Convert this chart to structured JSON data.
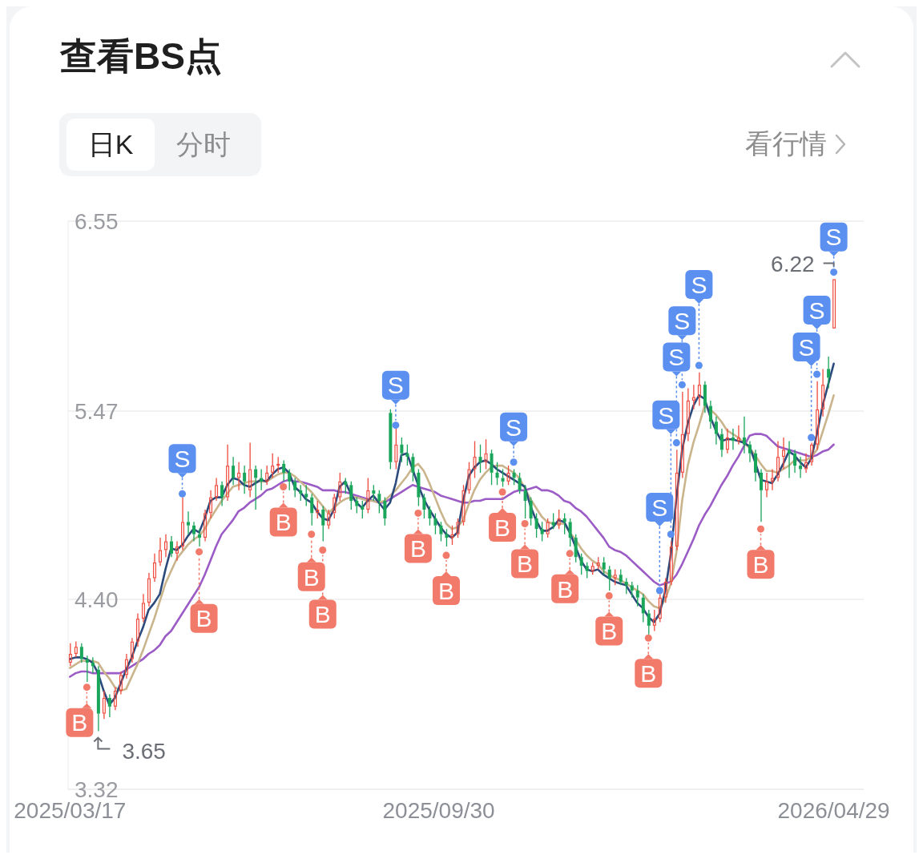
{
  "chart_data": {
    "type": "candlestick",
    "title": "查看BS点",
    "x": [
      "2025-03-17",
      "2025-03-20",
      "2025-03-23",
      "2025-03-26",
      "2025-03-29",
      "2025-04-01",
      "2025-04-04",
      "2025-04-07",
      "2025-04-10",
      "2025-04-13",
      "2025-04-16",
      "2025-04-19",
      "2025-04-22",
      "2025-04-25",
      "2025-04-28",
      "2025-05-01",
      "2025-05-04",
      "2025-05-07",
      "2025-05-10",
      "2025-05-13",
      "2025-05-16",
      "2025-05-19",
      "2025-05-22",
      "2025-05-25",
      "2025-05-28",
      "2025-05-31",
      "2025-06-03",
      "2025-06-06",
      "2025-06-09",
      "2025-06-12",
      "2025-06-15",
      "2025-06-18",
      "2025-06-21",
      "2025-06-24",
      "2025-06-27",
      "2025-06-30",
      "2025-07-03",
      "2025-07-06",
      "2025-07-09",
      "2025-07-12",
      "2025-07-15",
      "2025-07-18",
      "2025-07-21",
      "2025-07-24",
      "2025-07-27",
      "2025-07-30",
      "2025-08-02",
      "2025-08-05",
      "2025-08-08",
      "2025-08-11",
      "2025-08-14",
      "2025-08-17",
      "2025-08-20",
      "2025-08-23",
      "2025-08-26",
      "2025-08-29",
      "2025-09-01",
      "2025-09-04",
      "2025-09-07",
      "2025-09-10",
      "2025-09-13",
      "2025-09-16",
      "2025-09-19",
      "2025-09-22",
      "2025-09-25",
      "2025-09-28",
      "2025-10-01",
      "2025-10-04",
      "2025-10-07",
      "2025-10-10",
      "2025-10-13",
      "2025-10-16",
      "2025-10-19",
      "2025-10-22",
      "2025-10-25",
      "2025-10-28",
      "2025-10-31",
      "2025-11-03",
      "2025-11-06",
      "2025-11-09",
      "2025-11-12",
      "2025-11-15",
      "2025-11-18",
      "2025-11-21",
      "2025-11-24",
      "2025-11-27",
      "2025-11-30",
      "2025-12-03",
      "2025-12-06",
      "2025-12-09",
      "2025-12-12",
      "2025-12-15",
      "2025-12-18",
      "2025-12-21",
      "2025-12-24",
      "2025-12-27",
      "2025-12-30",
      "2026-01-02",
      "2026-01-05",
      "2026-01-08",
      "2026-01-11",
      "2026-01-14",
      "2026-01-17",
      "2026-01-20",
      "2026-01-23",
      "2026-01-26",
      "2026-01-29",
      "2026-02-01",
      "2026-02-04",
      "2026-02-07",
      "2026-02-10",
      "2026-02-13",
      "2026-02-16",
      "2026-02-19",
      "2026-02-22",
      "2026-02-25",
      "2026-02-28",
      "2026-03-03",
      "2026-03-06",
      "2026-03-09",
      "2026-03-12",
      "2026-03-15",
      "2026-03-18",
      "2026-03-21",
      "2026-03-24",
      "2026-03-27",
      "2026-03-30",
      "2026-04-02",
      "2026-04-05",
      "2026-04-08",
      "2026-04-11",
      "2026-04-14",
      "2026-04-17",
      "2026-04-20",
      "2026-04-23",
      "2026-04-26",
      "2026-04-29"
    ],
    "ohlc": [
      [
        4.04,
        4.15,
        4.02,
        4.09
      ],
      [
        4.09,
        4.16,
        4.07,
        4.13
      ],
      [
        4.13,
        4.15,
        4.04,
        4.06
      ],
      [
        4.06,
        4.08,
        3.93,
        4.04
      ],
      [
        4.04,
        4.07,
        3.98,
        4.02
      ],
      [
        4.0,
        4.02,
        3.65,
        3.75
      ],
      [
        3.75,
        3.88,
        3.72,
        3.84
      ],
      [
        3.84,
        3.86,
        3.73,
        3.79
      ],
      [
        3.79,
        3.9,
        3.77,
        3.88
      ],
      [
        3.88,
        3.99,
        3.86,
        3.97
      ],
      [
        3.97,
        4.09,
        3.95,
        4.06
      ],
      [
        4.06,
        4.18,
        4.04,
        4.16
      ],
      [
        4.16,
        4.32,
        4.13,
        4.29
      ],
      [
        4.29,
        4.43,
        4.27,
        4.38
      ],
      [
        4.38,
        4.55,
        4.36,
        4.52
      ],
      [
        4.52,
        4.66,
        4.5,
        4.61
      ],
      [
        4.61,
        4.75,
        4.59,
        4.68
      ],
      [
        4.68,
        4.77,
        4.64,
        4.73
      ],
      [
        4.73,
        4.76,
        4.64,
        4.66
      ],
      [
        4.66,
        4.73,
        4.62,
        4.7
      ],
      [
        4.7,
        4.98,
        4.68,
        4.84
      ],
      [
        4.84,
        4.9,
        4.77,
        4.82
      ],
      [
        4.82,
        4.84,
        4.73,
        4.77
      ],
      [
        4.77,
        4.8,
        4.7,
        4.75
      ],
      [
        4.75,
        4.91,
        4.73,
        4.89
      ],
      [
        4.89,
        5.02,
        4.86,
        4.98
      ],
      [
        4.98,
        5.09,
        4.96,
        5.05
      ],
      [
        5.05,
        5.07,
        4.93,
        4.98
      ],
      [
        4.98,
        5.28,
        4.96,
        5.16
      ],
      [
        5.16,
        5.21,
        5.05,
        5.09
      ],
      [
        5.09,
        5.18,
        5.02,
        5.12
      ],
      [
        5.12,
        5.16,
        5.0,
        5.07
      ],
      [
        5.02,
        5.29,
        4.98,
        5.14
      ],
      [
        5.14,
        5.16,
        4.91,
        5.09
      ],
      [
        5.09,
        5.14,
        5.02,
        5.07
      ],
      [
        5.07,
        5.16,
        5.05,
        5.12
      ],
      [
        5.12,
        5.23,
        5.09,
        5.16
      ],
      [
        5.16,
        5.21,
        5.12,
        5.17
      ],
      [
        5.17,
        5.19,
        5.07,
        5.12
      ],
      [
        5.12,
        5.14,
        5.02,
        5.07
      ],
      [
        5.07,
        5.09,
        4.98,
        5.02
      ],
      [
        5.02,
        5.05,
        4.96,
        5.0
      ],
      [
        5.0,
        5.05,
        4.93,
        4.98
      ],
      [
        4.98,
        5.0,
        4.82,
        4.89
      ],
      [
        4.89,
        4.96,
        4.86,
        4.91
      ],
      [
        4.91,
        4.93,
        4.73,
        4.82
      ],
      [
        4.82,
        4.91,
        4.8,
        4.89
      ],
      [
        4.89,
        5.0,
        4.86,
        4.98
      ],
      [
        4.98,
        5.12,
        4.96,
        5.07
      ],
      [
        5.07,
        5.09,
        5.0,
        5.05
      ],
      [
        5.05,
        5.07,
        4.91,
        4.96
      ],
      [
        4.96,
        4.98,
        4.89,
        4.93
      ],
      [
        4.93,
        4.96,
        4.86,
        4.91
      ],
      [
        4.91,
        5.09,
        4.89,
        5.02
      ],
      [
        5.02,
        5.05,
        4.96,
        5.0
      ],
      [
        5.0,
        5.02,
        4.89,
        4.96
      ],
      [
        4.96,
        4.98,
        4.82,
        4.86
      ],
      [
        5.46,
        5.48,
        5.14,
        5.18
      ],
      [
        5.18,
        5.37,
        5.14,
        5.28
      ],
      [
        5.28,
        5.32,
        5.18,
        5.23
      ],
      [
        5.23,
        5.28,
        5.16,
        5.21
      ],
      [
        5.21,
        5.23,
        5.07,
        5.12
      ],
      [
        5.12,
        5.14,
        4.93,
        4.98
      ],
      [
        4.98,
        5.0,
        4.86,
        4.91
      ],
      [
        4.91,
        4.93,
        4.82,
        4.86
      ],
      [
        4.86,
        4.89,
        4.77,
        4.82
      ],
      [
        4.82,
        4.84,
        4.73,
        4.77
      ],
      [
        4.77,
        4.8,
        4.7,
        4.75
      ],
      [
        4.75,
        4.82,
        4.71,
        4.77
      ],
      [
        4.77,
        4.86,
        4.75,
        4.84
      ],
      [
        4.84,
        5.05,
        4.82,
        5.02
      ],
      [
        5.02,
        5.18,
        5.0,
        5.14
      ],
      [
        5.14,
        5.3,
        5.09,
        5.21
      ],
      [
        5.21,
        5.28,
        5.12,
        5.18
      ],
      [
        5.18,
        5.31,
        5.14,
        5.23
      ],
      [
        5.23,
        5.25,
        5.05,
        5.12
      ],
      [
        5.12,
        5.18,
        5.05,
        5.09
      ],
      [
        5.09,
        5.14,
        5.04,
        5.07
      ],
      [
        5.07,
        5.16,
        5.05,
        5.12
      ],
      [
        5.12,
        5.14,
        5.05,
        5.09
      ],
      [
        5.09,
        5.12,
        5.0,
        5.02
      ],
      [
        5.02,
        5.05,
        4.86,
        4.96
      ],
      [
        4.96,
        4.98,
        4.82,
        4.86
      ],
      [
        4.86,
        4.89,
        4.75,
        4.8
      ],
      [
        4.8,
        4.84,
        4.73,
        4.77
      ],
      [
        4.77,
        4.86,
        4.75,
        4.84
      ],
      [
        4.84,
        4.89,
        4.8,
        4.82
      ],
      [
        4.82,
        4.91,
        4.8,
        4.86
      ],
      [
        4.86,
        4.89,
        4.77,
        4.84
      ],
      [
        4.84,
        4.86,
        4.7,
        4.75
      ],
      [
        4.75,
        4.77,
        4.61,
        4.64
      ],
      [
        4.64,
        4.66,
        4.54,
        4.59
      ],
      [
        4.59,
        4.61,
        4.52,
        4.56
      ],
      [
        4.56,
        4.61,
        4.54,
        4.59
      ],
      [
        4.59,
        4.64,
        4.57,
        4.61
      ],
      [
        4.61,
        4.64,
        4.54,
        4.57
      ],
      [
        4.57,
        4.59,
        4.45,
        4.52
      ],
      [
        4.52,
        4.57,
        4.48,
        4.54
      ],
      [
        4.54,
        4.57,
        4.48,
        4.5
      ],
      [
        4.5,
        4.52,
        4.43,
        4.48
      ],
      [
        4.48,
        4.5,
        4.41,
        4.45
      ],
      [
        4.45,
        4.48,
        4.36,
        4.41
      ],
      [
        4.41,
        4.43,
        4.27,
        4.32
      ],
      [
        4.32,
        4.34,
        4.2,
        4.25
      ],
      [
        4.25,
        4.34,
        4.22,
        4.29
      ],
      [
        4.29,
        4.43,
        4.27,
        4.41
      ],
      [
        4.41,
        4.52,
        4.38,
        4.5
      ],
      [
        4.5,
        4.73,
        4.48,
        4.7
      ],
      [
        4.7,
        5.25,
        4.68,
        5.12
      ],
      [
        5.12,
        5.58,
        5.09,
        5.34
      ],
      [
        5.34,
        5.6,
        5.3,
        5.53
      ],
      [
        5.53,
        5.62,
        5.48,
        5.55
      ],
      [
        5.55,
        5.69,
        5.5,
        5.62
      ],
      [
        5.62,
        5.64,
        5.46,
        5.5
      ],
      [
        5.5,
        5.53,
        5.37,
        5.41
      ],
      [
        5.41,
        5.44,
        5.28,
        5.34
      ],
      [
        5.34,
        5.37,
        5.21,
        5.25
      ],
      [
        5.25,
        5.37,
        5.23,
        5.32
      ],
      [
        5.32,
        5.37,
        5.25,
        5.3
      ],
      [
        5.3,
        5.39,
        5.28,
        5.32
      ],
      [
        5.32,
        5.44,
        5.23,
        5.28
      ],
      [
        5.28,
        5.3,
        5.18,
        5.23
      ],
      [
        5.23,
        5.25,
        5.07,
        5.12
      ],
      [
        5.12,
        5.14,
        4.84,
        5.02
      ],
      [
        5.02,
        5.12,
        4.98,
        5.07
      ],
      [
        5.07,
        5.14,
        5.02,
        5.09
      ],
      [
        5.09,
        5.3,
        5.07,
        5.21
      ],
      [
        5.21,
        5.32,
        5.14,
        5.25
      ],
      [
        5.25,
        5.3,
        5.09,
        5.23
      ],
      [
        5.23,
        5.25,
        5.12,
        5.16
      ],
      [
        5.16,
        5.21,
        5.09,
        5.14
      ],
      [
        5.14,
        5.23,
        5.12,
        5.18
      ],
      [
        5.18,
        5.29,
        5.16,
        5.28
      ],
      [
        5.28,
        5.64,
        5.25,
        5.48
      ],
      [
        5.48,
        5.71,
        5.44,
        5.62
      ],
      [
        5.71,
        5.78,
        5.6,
        5.66
      ],
      [
        5.94,
        6.22,
        5.94,
        6.22
      ]
    ],
    "colors": [
      "#ef4a3d",
      "#ef4a3d",
      "#19a55a",
      "#19a55a",
      "#19a55a",
      "#19a55a",
      "#ef4a3d",
      "#19a55a",
      "#ef4a3d",
      "#ef4a3d",
      "#ef4a3d",
      "#ef4a3d",
      "#ef4a3d",
      "#ef4a3d",
      "#ef4a3d",
      "#ef4a3d",
      "#ef4a3d",
      "#ef4a3d",
      "#19a55a",
      "#ef4a3d",
      "#ef4a3d",
      "#19a55a",
      "#19a55a",
      "#19a55a",
      "#ef4a3d",
      "#ef4a3d",
      "#ef4a3d",
      "#19a55a",
      "#ef4a3d",
      "#19a55a",
      "#ef4a3d",
      "#19a55a",
      "#ef4a3d",
      "#19a55a",
      "#19a55a",
      "#ef4a3d",
      "#ef4a3d",
      "#ef4a3d",
      "#19a55a",
      "#19a55a",
      "#19a55a",
      "#19a55a",
      "#19a55a",
      "#19a55a",
      "#ef4a3d",
      "#19a55a",
      "#ef4a3d",
      "#ef4a3d",
      "#ef4a3d",
      "#19a55a",
      "#19a55a",
      "#19a55a",
      "#19a55a",
      "#ef4a3d",
      "#19a55a",
      "#19a55a",
      "#19a55a",
      "#19a55a",
      "#ef4a3d",
      "#19a55a",
      "#19a55a",
      "#19a55a",
      "#19a55a",
      "#19a55a",
      "#19a55a",
      "#19a55a",
      "#19a55a",
      "#19a55a",
      "#ef4a3d",
      "#ef4a3d",
      "#ef4a3d",
      "#ef4a3d",
      "#ef4a3d",
      "#19a55a",
      "#ef4a3d",
      "#19a55a",
      "#19a55a",
      "#19a55a",
      "#ef4a3d",
      "#19a55a",
      "#19a55a",
      "#19a55a",
      "#19a55a",
      "#19a55a",
      "#19a55a",
      "#ef4a3d",
      "#19a55a",
      "#ef4a3d",
      "#19a55a",
      "#19a55a",
      "#19a55a",
      "#19a55a",
      "#19a55a",
      "#ef4a3d",
      "#ef4a3d",
      "#19a55a",
      "#19a55a",
      "#ef4a3d",
      "#19a55a",
      "#19a55a",
      "#19a55a",
      "#19a55a",
      "#19a55a",
      "#19a55a",
      "#ef4a3d",
      "#ef4a3d",
      "#ef4a3d",
      "#ef4a3d",
      "#ef4a3d",
      "#ef4a3d",
      "#ef4a3d",
      "#ef4a3d",
      "#ef4a3d",
      "#19a55a",
      "#19a55a",
      "#19a55a",
      "#19a55a",
      "#ef4a3d",
      "#19a55a",
      "#ef4a3d",
      "#19a55a",
      "#19a55a",
      "#19a55a",
      "#19a55a",
      "#ef4a3d",
      "#ef4a3d",
      "#ef4a3d",
      "#ef4a3d",
      "#19a55a",
      "#19a55a",
      "#19a55a",
      "#ef4a3d",
      "#ef4a3d",
      "#ef4a3d",
      "#ef4a3d",
      "#19a55a",
      "#ef4a3d"
    ],
    "series": [
      {
        "type": "line",
        "color": "#2c4a7c",
        "values": [
          4.06,
          4.07,
          4.07,
          4.06,
          4.04,
          3.98,
          3.88,
          3.8,
          3.84,
          3.92,
          4.0,
          4.07,
          4.16,
          4.24,
          4.34,
          4.38,
          4.43,
          4.57,
          4.69,
          4.68,
          4.71,
          4.76,
          4.8,
          4.78,
          4.86,
          4.96,
          4.98,
          4.98,
          5.05,
          5.09,
          5.08,
          5.05,
          5.04,
          5.06,
          5.08,
          5.07,
          5.11,
          5.14,
          5.15,
          5.12,
          5.04,
          5.01,
          4.97,
          4.95,
          4.9,
          4.86,
          4.85,
          4.91,
          5.04,
          5.07,
          5.0,
          4.95,
          4.92,
          4.96,
          4.99,
          4.95,
          4.91,
          4.95,
          5.06,
          5.22,
          5.23,
          5.14,
          5.05,
          4.97,
          4.91,
          4.86,
          4.81,
          4.77,
          4.75,
          4.78,
          4.96,
          5.1,
          5.15,
          5.18,
          5.19,
          5.17,
          5.14,
          5.12,
          5.1,
          5.08,
          5.06,
          5.04,
          4.93,
          4.85,
          4.79,
          4.79,
          4.81,
          4.85,
          4.84,
          4.78,
          4.7,
          4.62,
          4.57,
          4.56,
          4.57,
          4.54,
          4.52,
          4.5,
          4.49,
          4.48,
          4.43,
          4.38,
          4.35,
          4.3,
          4.27,
          4.32,
          4.45,
          4.66,
          4.98,
          5.25,
          5.4,
          5.5,
          5.56,
          5.54,
          5.44,
          5.36,
          5.3,
          5.31,
          5.31,
          5.3,
          5.29,
          5.27,
          5.18,
          5.08,
          5.07,
          5.06,
          5.11,
          5.17,
          5.24,
          5.22,
          5.18,
          5.15,
          5.2,
          5.34,
          5.5,
          5.62,
          5.74
        ]
      },
      {
        "type": "line",
        "color": "#c9b48c",
        "values": [
          4.01,
          4.03,
          4.05,
          4.05,
          4.05,
          4.04,
          3.99,
          3.95,
          3.9,
          3.88,
          3.89,
          3.96,
          4.03,
          4.11,
          4.2,
          4.29,
          4.39,
          4.49,
          4.56,
          4.63,
          4.67,
          4.71,
          4.74,
          4.76,
          4.8,
          4.86,
          4.91,
          4.96,
          5.0,
          5.04,
          5.05,
          5.06,
          5.07,
          5.07,
          5.07,
          5.07,
          5.09,
          5.11,
          5.12,
          5.12,
          5.1,
          5.07,
          5.04,
          5.01,
          4.97,
          4.93,
          4.89,
          4.92,
          4.95,
          4.97,
          4.98,
          4.98,
          4.97,
          4.96,
          4.96,
          4.95,
          4.96,
          4.99,
          5.02,
          5.06,
          5.1,
          5.15,
          5.17,
          5.13,
          5.06,
          4.98,
          4.9,
          4.83,
          4.8,
          4.81,
          4.85,
          4.94,
          5.02,
          5.08,
          5.12,
          5.15,
          5.16,
          5.16,
          5.14,
          5.12,
          5.09,
          5.03,
          4.97,
          4.92,
          4.87,
          4.84,
          4.83,
          4.83,
          4.83,
          4.78,
          4.74,
          4.69,
          4.65,
          4.62,
          4.6,
          4.56,
          4.54,
          4.52,
          4.51,
          4.49,
          4.47,
          4.45,
          4.43,
          4.39,
          4.36,
          4.35,
          4.4,
          4.49,
          4.67,
          4.96,
          5.16,
          5.29,
          5.39,
          5.5,
          5.48,
          5.45,
          5.41,
          5.36,
          5.34,
          5.32,
          5.29,
          5.26,
          5.22,
          5.17,
          5.13,
          5.13,
          5.12,
          5.14,
          5.16,
          5.19,
          5.19,
          5.19,
          5.21,
          5.25,
          5.35,
          5.45,
          5.56
        ]
      },
      {
        "type": "line",
        "color": "#9c5cc6",
        "values": [
          3.96,
          3.98,
          3.99,
          3.99,
          3.98,
          3.98,
          3.98,
          3.98,
          3.98,
          3.98,
          4.0,
          4.02,
          4.04,
          4.06,
          4.09,
          4.11,
          4.14,
          4.19,
          4.22,
          4.27,
          4.32,
          4.37,
          4.42,
          4.47,
          4.54,
          4.62,
          4.7,
          4.77,
          4.81,
          4.85,
          4.9,
          4.92,
          4.95,
          4.97,
          4.99,
          5.02,
          5.03,
          5.05,
          5.07,
          5.08,
          5.07,
          5.07,
          5.06,
          5.05,
          5.04,
          5.02,
          5.02,
          5.02,
          5.01,
          5.01,
          5.0,
          4.99,
          4.98,
          4.97,
          4.96,
          4.95,
          4.95,
          4.97,
          4.99,
          5.01,
          5.03,
          5.05,
          5.04,
          5.03,
          5.02,
          5.01,
          4.99,
          4.98,
          4.97,
          4.96,
          4.95,
          4.95,
          4.96,
          4.96,
          4.97,
          4.97,
          4.97,
          4.97,
          4.99,
          5.01,
          5.02,
          5.02,
          5.03,
          5.04,
          5.02,
          5.02,
          5.01,
          4.99,
          4.96,
          4.95,
          4.92,
          4.9,
          4.87,
          4.83,
          4.79,
          4.75,
          4.7,
          4.68,
          4.67,
          4.65,
          4.62,
          4.59,
          4.56,
          4.53,
          4.5,
          4.48,
          4.49,
          4.5,
          4.54,
          4.6,
          4.67,
          4.74,
          4.82,
          4.88,
          4.93,
          4.99,
          5.05,
          5.1,
          5.16,
          5.21,
          5.27,
          5.33,
          5.34,
          5.34,
          5.33,
          5.3,
          5.27,
          5.26,
          5.25,
          5.24,
          5.23,
          5.22,
          5.21,
          5.22,
          5.24,
          5.25,
          5.28
        ]
      },
      {
        "type": "scatter",
        "color": "#5b8ff0",
        "marker": "circle",
        "x": [
          "2025-05-16",
          "2025-09-07",
          "2025-11-09",
          "2026-01-26",
          "2026-02-01",
          "2026-02-04",
          "2026-02-07",
          "2026-02-16",
          "2026-04-17",
          "2026-04-20",
          "2026-04-29"
        ],
        "values": [
          5.0,
          5.39,
          5.18,
          4.45,
          4.77,
          5.29,
          5.62,
          5.73,
          5.32,
          5.68,
          6.26
        ]
      },
      {
        "type": "scatter",
        "color": "#f27a6b",
        "marker": "circle",
        "x": [
          "2025-03-26",
          "2025-05-25",
          "2025-07-09",
          "2025-07-24",
          "2025-07-30",
          "2025-09-19",
          "2025-10-04",
          "2025-11-03",
          "2025-11-15",
          "2025-12-09",
          "2025-12-30",
          "2026-01-20",
          "2026-03-21"
        ],
        "values": [
          3.9,
          4.67,
          5.04,
          4.77,
          4.68,
          4.89,
          4.65,
          5.01,
          4.83,
          4.66,
          4.42,
          4.18,
          4.8
        ]
      }
    ],
    "xlim": [
      "2025-03-16",
      "2026-05-15"
    ],
    "xticks": [
      {
        "value": "2025-03-17",
        "label": "2025/03/17"
      },
      {
        "value": "2025-09-30",
        "label": "2025/09/30"
      },
      {
        "value": "2026-04-29",
        "label": "2026/04/29"
      }
    ],
    "ylim": [
      3.32,
      6.55
    ],
    "yticks": [
      3.32,
      {
        "value": 4.4,
        "label": "4.40"
      },
      5.47,
      6.55
    ],
    "grid": "y",
    "annotations": [
      "日K",
      "分时",
      "看行情",
      {
        "text": "S",
        "x": "2025-05-16",
        "y": 5.0
      },
      {
        "text": "S",
        "x": "2025-09-07",
        "y": 5.39
      },
      {
        "text": "S",
        "x": "2025-11-09",
        "y": 5.18
      },
      {
        "text": "S",
        "x": "2026-01-26",
        "y": 4.45
      },
      {
        "text": "S",
        "x": "2026-02-01",
        "y": 4.77
      },
      {
        "text": "S",
        "x": "2026-02-04",
        "y": 5.29
      },
      {
        "text": "S",
        "x": "2026-02-07",
        "y": 5.62
      },
      {
        "text": "S",
        "x": "2026-02-16",
        "y": 5.73
      },
      {
        "text": "S",
        "x": "2026-04-17",
        "y": 5.32
      },
      {
        "text": "S",
        "x": "2026-04-20",
        "y": 5.68
      },
      {
        "text": "S",
        "x": "2026-04-29",
        "y": 6.26
      },
      {
        "text": "B",
        "x": "2025-03-26",
        "y": 3.9
      },
      {
        "text": "B",
        "x": "2025-05-25",
        "y": 4.67
      },
      {
        "text": "B",
        "x": "2025-07-09",
        "y": 5.04
      },
      {
        "text": "B",
        "x": "2025-07-24",
        "y": 4.77
      },
      {
        "text": "B",
        "x": "2025-07-30",
        "y": 4.68
      },
      {
        "text": "B",
        "x": "2025-09-19",
        "y": 4.89
      },
      {
        "text": "B",
        "x": "2025-10-04",
        "y": 4.65
      },
      {
        "text": "B",
        "x": "2025-11-03",
        "y": 5.01
      },
      {
        "text": "B",
        "x": "2025-11-15",
        "y": 4.83
      },
      {
        "text": "B",
        "x": "2025-12-09",
        "y": 4.66
      },
      {
        "text": "B",
        "x": "2025-12-30",
        "y": 4.42
      },
      {
        "text": "B",
        "x": "2026-01-20",
        "y": 4.18
      },
      {
        "text": "B",
        "x": "2026-03-21",
        "y": 4.8
      },
      {
        "text": "6.22",
        "x": "2026-04-29",
        "y": 6.22
      },
      {
        "text": "3.65",
        "x": "2025-04-01",
        "y": 3.65
      }
    ]
  }
}
